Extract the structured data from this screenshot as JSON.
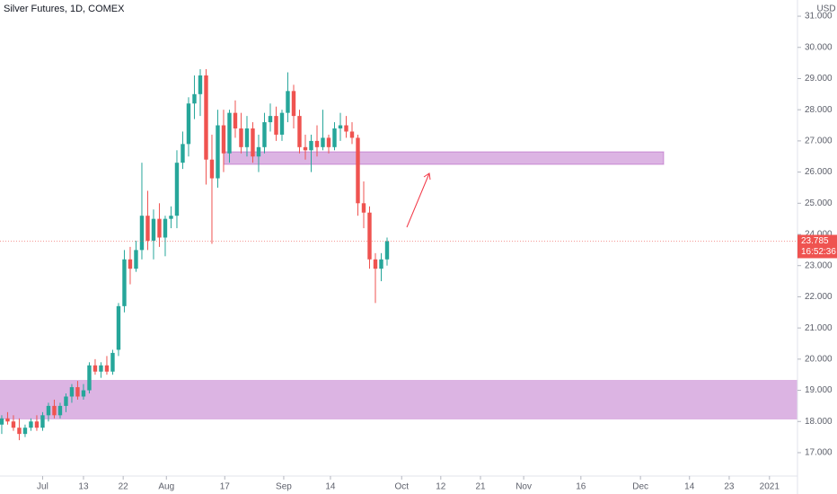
{
  "chart_data": {
    "type": "candlestick",
    "title": "Silver Futures, 1D, COMEX",
    "currency": "USD",
    "up_color": "#26a69a",
    "down_color": "#ef5350",
    "open": [
      17.9,
      18.1,
      18.0,
      17.8,
      17.6,
      17.8,
      18.0,
      17.8,
      18.2,
      18.5,
      18.2,
      18.5,
      18.8,
      19.1,
      18.8,
      19.0,
      19.8,
      19.6,
      19.8,
      19.6,
      20.3,
      21.7,
      23.2,
      22.9,
      23.5,
      24.6,
      23.8,
      24.5,
      23.9,
      24.5,
      24.6,
      26.3,
      26.9,
      28.2,
      28.5,
      29.1,
      26.4,
      25.8,
      27.5,
      26.6,
      27.9,
      27.4,
      26.8,
      27.4,
      26.5,
      26.8,
      27.6,
      27.8,
      27.2,
      27.9,
      28.6,
      27.8,
      26.8,
      26.7,
      27.0,
      26.8,
      27.1,
      26.8,
      27.4,
      27.5,
      27.3,
      27.1,
      25.0,
      24.7,
      23.2,
      22.9,
      23.2
    ],
    "high": [
      18.2,
      18.3,
      18.2,
      18.1,
      17.9,
      18.1,
      18.2,
      18.3,
      18.6,
      18.7,
      18.6,
      18.9,
      19.2,
      19.3,
      19.2,
      19.9,
      20.0,
      19.9,
      20.1,
      20.3,
      21.8,
      23.5,
      23.6,
      23.8,
      26.3,
      25.4,
      24.8,
      25.0,
      24.6,
      24.9,
      26.7,
      27.3,
      28.4,
      29.1,
      29.3,
      29.3,
      27.2,
      28.0,
      28.0,
      28.0,
      28.3,
      27.9,
      27.8,
      27.6,
      27.2,
      27.9,
      28.2,
      28.1,
      28.0,
      29.2,
      28.8,
      28.0,
      27.2,
      27.2,
      27.5,
      28.0,
      27.2,
      27.6,
      27.9,
      27.8,
      27.6,
      27.2,
      25.7,
      24.9,
      23.4,
      23.4,
      23.9
    ],
    "low": [
      17.6,
      17.9,
      17.7,
      17.4,
      17.5,
      17.7,
      17.7,
      17.7,
      18.0,
      18.1,
      18.1,
      18.3,
      18.6,
      18.7,
      18.7,
      18.9,
      19.5,
      19.4,
      19.5,
      19.5,
      20.1,
      21.5,
      22.4,
      22.8,
      23.2,
      23.5,
      23.2,
      23.6,
      23.3,
      24.2,
      24.2,
      26.1,
      26.5,
      27.7,
      27.8,
      25.6,
      23.7,
      25.5,
      26.0,
      26.3,
      27.1,
      26.6,
      26.5,
      26.3,
      26.0,
      26.6,
      27.3,
      27.0,
      27.0,
      27.6,
      27.4,
      26.6,
      26.4,
      26.0,
      26.5,
      26.7,
      26.6,
      26.7,
      27.0,
      27.1,
      26.9,
      24.6,
      24.2,
      22.9,
      21.8,
      22.5,
      23.0
    ],
    "close": [
      18.1,
      18.0,
      17.8,
      17.6,
      17.8,
      18.0,
      17.8,
      18.2,
      18.5,
      18.2,
      18.5,
      18.8,
      19.1,
      18.8,
      19.0,
      19.8,
      19.6,
      19.8,
      19.6,
      20.2,
      21.7,
      23.2,
      22.9,
      23.5,
      24.6,
      23.8,
      24.5,
      23.9,
      24.5,
      24.6,
      26.3,
      26.9,
      28.2,
      28.5,
      29.1,
      26.4,
      25.8,
      27.5,
      26.6,
      27.9,
      27.4,
      26.8,
      27.4,
      26.5,
      26.8,
      27.6,
      27.8,
      27.2,
      27.9,
      28.6,
      27.8,
      26.8,
      26.7,
      27.0,
      26.8,
      27.1,
      26.8,
      27.4,
      27.5,
      27.3,
      27.1,
      25.0,
      24.7,
      23.2,
      22.9,
      23.2,
      23.785
    ],
    "ylim": [
      16.25,
      31.52
    ],
    "yticks": [
      {
        "value": 17,
        "label": "17.000"
      },
      {
        "value": 18,
        "label": "18.000"
      },
      {
        "value": 19,
        "label": "19.000"
      },
      {
        "value": 20,
        "label": "20.000"
      },
      {
        "value": 21,
        "label": "21.000"
      },
      {
        "value": 22,
        "label": "22.000"
      },
      {
        "value": 23,
        "label": "23.000"
      },
      {
        "value": 24,
        "label": "24.000"
      },
      {
        "value": 25,
        "label": "25.000"
      },
      {
        "value": 26,
        "label": "26.000"
      },
      {
        "value": 27,
        "label": "27.000"
      },
      {
        "value": 28,
        "label": "28.000"
      },
      {
        "value": 29,
        "label": "29.000"
      },
      {
        "value": 30,
        "label": "30.000"
      },
      {
        "value": 31,
        "label": "31.000"
      }
    ],
    "xlim": [
      -0.3,
      136.3
    ],
    "xticks": [
      {
        "value": 7,
        "label": "Jul"
      },
      {
        "value": 14,
        "label": "13"
      },
      {
        "value": 20.8,
        "label": "22"
      },
      {
        "value": 28.2,
        "label": "Aug"
      },
      {
        "value": 38.2,
        "label": "17"
      },
      {
        "value": 48.3,
        "label": "Sep"
      },
      {
        "value": 56.3,
        "label": "14"
      },
      {
        "value": 68.5,
        "label": "Oct"
      },
      {
        "value": 75.2,
        "label": "12"
      },
      {
        "value": 82,
        "label": "21"
      },
      {
        "value": 89.4,
        "label": "Nov"
      },
      {
        "value": 99.2,
        "label": "16"
      },
      {
        "value": 109.4,
        "label": "Dec"
      },
      {
        "value": 117.8,
        "label": "14"
      },
      {
        "value": 124.6,
        "label": "23"
      },
      {
        "value": 131.5,
        "label": "2021"
      }
    ],
    "grid": false,
    "last_price": 23.785,
    "countdown": "16:52:36"
  }
}
